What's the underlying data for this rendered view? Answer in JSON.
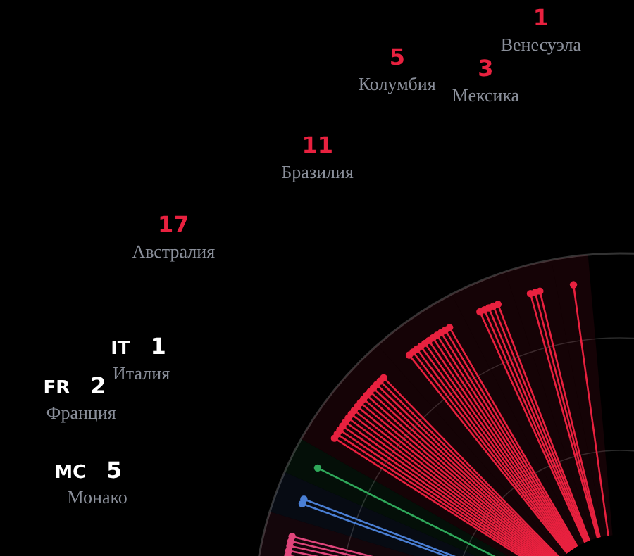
{
  "chart_data": {
    "type": "other",
    "categories": [
      "Монако",
      "Франция",
      "Италия",
      "Австралия",
      "Бразилия",
      "Колумбия",
      "Мексика",
      "Венесуэла"
    ],
    "values": [
      5,
      2,
      1,
      17,
      11,
      5,
      3,
      1
    ],
    "data_labels": true,
    "colors": [
      "#e0457b",
      "#4a7fd4",
      "#2fa85a",
      "#e8213f",
      "#e8213f",
      "#e8213f",
      "#e8213f",
      "#e8213f"
    ],
    "annotations": [
      {
        "text": "MC",
        "x": "Монако"
      },
      {
        "text": "FR",
        "x": "Франция"
      },
      {
        "text": "IT",
        "x": "Италия"
      }
    ]
  }
}
